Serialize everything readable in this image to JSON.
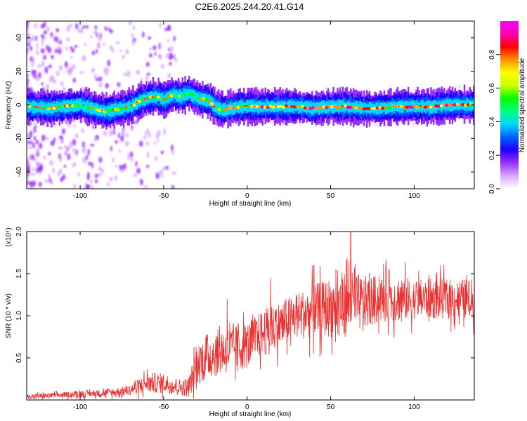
{
  "chart_data": [
    {
      "type": "heatmap",
      "title": "C2E6.2025.244.20.41.G14",
      "xlabel": "Height of straight line (km)",
      "ylabel": "Frequency (Hz)",
      "xlim": [
        -132,
        136
      ],
      "ylim": [
        -50,
        50
      ],
      "xticks": [
        -100,
        -50,
        0,
        50,
        100
      ],
      "xtick_labels": [
        "-100",
        "-50",
        "0",
        "50",
        "100"
      ],
      "yticks": [
        40,
        20,
        0,
        -20,
        -40
      ],
      "ytick_labels": [
        "40",
        "20",
        "0",
        "-20",
        "-40"
      ],
      "ridge": {
        "description": "Dominant spectral peak frequency vs height",
        "x": [
          -130,
          -120,
          -110,
          -100,
          -90,
          -85,
          -80,
          -75,
          -70,
          -65,
          -60,
          -55,
          -50,
          -45,
          -40,
          -35,
          -30,
          -25,
          -22,
          -20,
          -15,
          -10,
          -5,
          0,
          10,
          20,
          30,
          40,
          50,
          60,
          70,
          80,
          90,
          100,
          110,
          120,
          130,
          135
        ],
        "y": [
          -1,
          -2,
          -1,
          0,
          -3,
          -4,
          -3,
          -2,
          -1,
          2,
          4,
          5,
          3,
          6,
          5,
          7,
          4,
          3,
          2,
          -1,
          -3,
          -2,
          -1,
          -1,
          -1,
          -1,
          -1,
          -2,
          -1,
          -1,
          -2,
          -2,
          -1,
          -1,
          -1,
          0,
          0,
          0
        ]
      },
      "colorbar": {
        "label": "Normalized spectral amplitude",
        "range": [
          0.0,
          1.0
        ],
        "ticks": [
          0.0,
          0.2,
          0.4,
          0.6,
          0.8
        ],
        "tick_labels": [
          "0.0",
          "0.2",
          "0.4",
          "0.6",
          "0.8"
        ],
        "colors": [
          "#ffffff",
          "#d9a8ff",
          "#9a30ff",
          "#2000ff",
          "#0060ff",
          "#00d8ff",
          "#00ff80",
          "#00ff00",
          "#c8ff00",
          "#ffff00",
          "#ff9000",
          "#ff0000",
          "#ff00b0",
          "#ff00ff"
        ]
      }
    },
    {
      "type": "line",
      "xlabel": "Height of straight line (km)",
      "ylabel": "SNR (10 * v/v)",
      "ylabel_unit": "(x10⁴)",
      "xlim": [
        -132,
        136
      ],
      "ylim": [
        0,
        2.0
      ],
      "xticks": [
        -100,
        -50,
        0,
        50,
        100
      ],
      "xtick_labels": [
        "-100",
        "-50",
        "0",
        "50",
        "100"
      ],
      "yticks": [
        0.5,
        1.0,
        1.5,
        2.0
      ],
      "ytick_labels": [
        "0.5",
        "1.0",
        "1.5",
        "2.0"
      ],
      "color": "#ee3030",
      "series": [
        {
          "name": "SNR",
          "x": [
            -132,
            -120,
            -110,
            -100,
            -90,
            -80,
            -70,
            -60,
            -50,
            -40,
            -35,
            -30,
            -25,
            -20,
            -10,
            0,
            10,
            20,
            30,
            40,
            50,
            60,
            70,
            80,
            90,
            100,
            110,
            120,
            130,
            136
          ],
          "y": [
            0.04,
            0.05,
            0.06,
            0.07,
            0.08,
            0.09,
            0.12,
            0.2,
            0.2,
            0.15,
            0.15,
            0.42,
            0.5,
            0.55,
            0.6,
            0.65,
            0.8,
            0.9,
            1.0,
            1.05,
            1.1,
            1.15,
            1.15,
            1.2,
            1.2,
            1.2,
            1.2,
            1.2,
            1.2,
            1.2
          ],
          "noise_amp": [
            0.03,
            0.04,
            0.04,
            0.05,
            0.05,
            0.06,
            0.08,
            0.15,
            0.15,
            0.12,
            0.15,
            0.3,
            0.35,
            0.35,
            0.35,
            0.35,
            0.35,
            0.35,
            0.35,
            0.4,
            0.45,
            0.5,
            0.4,
            0.35,
            0.35,
            0.3,
            0.3,
            0.3,
            0.3,
            0.3
          ],
          "peaks": [
            {
              "x": 62,
              "y": 2.0
            },
            {
              "x": -12,
              "y": 1.2
            },
            {
              "x": 14,
              "y": 1.45
            },
            {
              "x": 40,
              "y": 1.6
            },
            {
              "x": 85,
              "y": 1.55
            }
          ]
        }
      ]
    }
  ]
}
